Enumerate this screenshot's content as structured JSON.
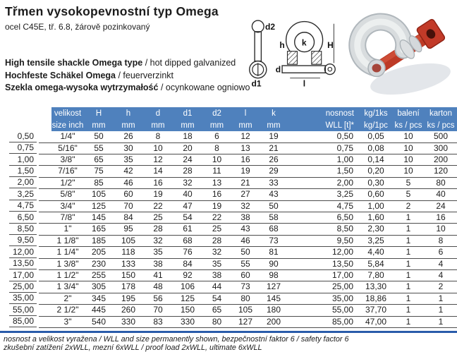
{
  "page": {
    "title": "Třmen vysokopevnostní typ Omega",
    "subtitle": "ocel C45E, tř. 6.8, žárově pozinkovaný"
  },
  "descriptions": [
    {
      "bold": "High tensile shackle Omega type",
      "rest": " / hot dipped galvanized"
    },
    {
      "bold": "Hochfeste Schäkel Omega",
      "rest": " / feuerverzinkt"
    },
    {
      "bold": "Szekla omega-wysoka wytrzymałość",
      "rest": " / ocynkowane ogniowo"
    }
  ],
  "diagram": {
    "labels": {
      "d2": "d2",
      "d1": "d1",
      "h": "h",
      "k": "k",
      "H": "H",
      "d": "d",
      "l": "l"
    }
  },
  "photo": {
    "description": "galvanized bow shackle with red screw pin"
  },
  "table": {
    "columns": [
      {
        "top": "velikost",
        "bottom": "size inch"
      },
      {
        "top": "H",
        "bottom": "mm"
      },
      {
        "top": "h",
        "bottom": "mm"
      },
      {
        "top": "d",
        "bottom": "mm"
      },
      {
        "top": "d1",
        "bottom": "mm"
      },
      {
        "top": "d2",
        "bottom": "mm"
      },
      {
        "top": "l",
        "bottom": "mm"
      },
      {
        "top": "k",
        "bottom": "mm"
      },
      {
        "top": "nosnost",
        "bottom": "WLL [t]*"
      },
      {
        "top": "kg/1ks",
        "bottom": "kg/1pc"
      },
      {
        "top": "balení",
        "bottom": "ks / pcs"
      },
      {
        "top": "karton",
        "bottom": "ks / pcs"
      }
    ],
    "rows": [
      [
        "0,50",
        "1/4\"",
        "50",
        "26",
        "8",
        "18",
        "6",
        "12",
        "19",
        "0,50",
        "0,05",
        "10",
        "500"
      ],
      [
        "0,75",
        "5/16\"",
        "55",
        "30",
        "10",
        "20",
        "8",
        "13",
        "21",
        "0,75",
        "0,08",
        "10",
        "300"
      ],
      [
        "1,00",
        "3/8\"",
        "65",
        "35",
        "12",
        "24",
        "10",
        "16",
        "26",
        "1,00",
        "0,14",
        "10",
        "200"
      ],
      [
        "1,50",
        "7/16\"",
        "75",
        "42",
        "14",
        "28",
        "11",
        "19",
        "29",
        "1,50",
        "0,20",
        "10",
        "120"
      ],
      [
        "2,00",
        "1/2\"",
        "85",
        "46",
        "16",
        "32",
        "13",
        "21",
        "33",
        "2,00",
        "0,30",
        "5",
        "80"
      ],
      [
        "3,25",
        "5/8\"",
        "105",
        "60",
        "19",
        "40",
        "16",
        "27",
        "43",
        "3,25",
        "0,60",
        "5",
        "40"
      ],
      [
        "4,75",
        "3/4\"",
        "125",
        "70",
        "22",
        "47",
        "19",
        "32",
        "50",
        "4,75",
        "1,00",
        "2",
        "24"
      ],
      [
        "6,50",
        "7/8\"",
        "145",
        "84",
        "25",
        "54",
        "22",
        "38",
        "58",
        "6,50",
        "1,60",
        "1",
        "16"
      ],
      [
        "8,50",
        "1\"",
        "165",
        "95",
        "28",
        "61",
        "25",
        "43",
        "68",
        "8,50",
        "2,30",
        "1",
        "10"
      ],
      [
        "9,50",
        "1 1/8\"",
        "185",
        "105",
        "32",
        "68",
        "28",
        "46",
        "73",
        "9,50",
        "3,25",
        "1",
        "8"
      ],
      [
        "12,00",
        "1 1/4\"",
        "205",
        "118",
        "35",
        "76",
        "32",
        "50",
        "81",
        "12,00",
        "4,40",
        "1",
        "6"
      ],
      [
        "13,50",
        "1 3/8\"",
        "230",
        "133",
        "38",
        "84",
        "35",
        "55",
        "90",
        "13,50",
        "5,84",
        "1",
        "4"
      ],
      [
        "17,00",
        "1 1/2\"",
        "255",
        "150",
        "41",
        "92",
        "38",
        "60",
        "98",
        "17,00",
        "7,80",
        "1",
        "4"
      ],
      [
        "25,00",
        "1 3/4\"",
        "305",
        "178",
        "48",
        "106",
        "44",
        "73",
        "127",
        "25,00",
        "13,30",
        "1",
        "2"
      ],
      [
        "35,00",
        "2\"",
        "345",
        "195",
        "56",
        "125",
        "54",
        "80",
        "145",
        "35,00",
        "18,86",
        "1",
        "1"
      ],
      [
        "55,00",
        "2 1/2\"",
        "445",
        "260",
        "70",
        "150",
        "65",
        "105",
        "180",
        "55,00",
        "37,70",
        "1",
        "1"
      ],
      [
        "85,00",
        "3\"",
        "540",
        "330",
        "83",
        "330",
        "80",
        "127",
        "200",
        "85,00",
        "47,00",
        "1",
        "1"
      ]
    ]
  },
  "footer": {
    "line1": "nosnost a velikost vyražena / WLL and size permanently shown, bezpečnostní faktor 6 / safety factor 6",
    "line2": "zkušební zatížení 2xWLL, mezní 6xWLL / proof load 2xWLL, ultimate 6xWLL"
  },
  "colors": {
    "header_bg": "#4f81bd",
    "header_text": "#ffffff",
    "row_border": "#4d4d4d",
    "separator": "#2a5caa",
    "pin_red": "#c23a28",
    "shackle_silver": "#d8dcde"
  }
}
